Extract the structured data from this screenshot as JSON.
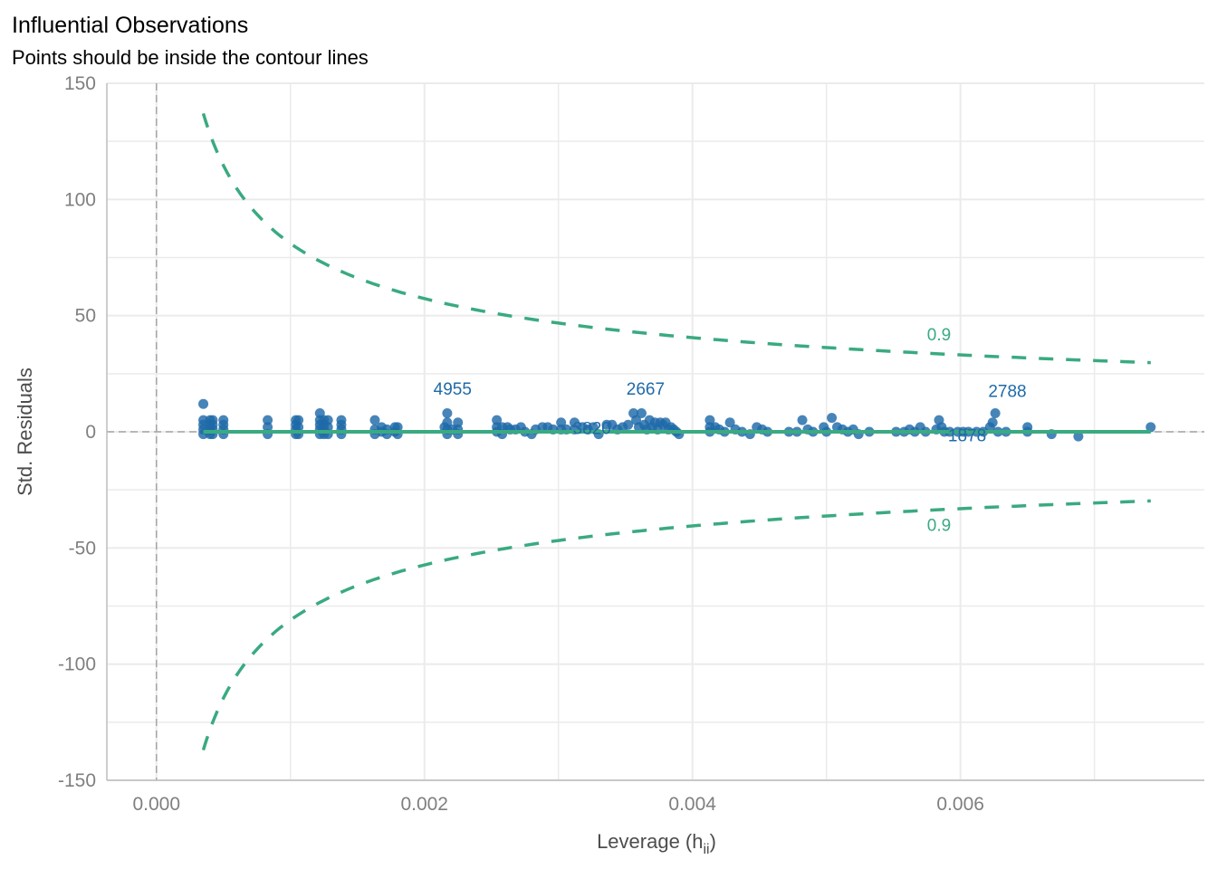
{
  "chart_data": {
    "type": "scatter",
    "title": "Influential Observations",
    "subtitle": "Points should be inside the contour lines",
    "xlabel": "Leverage (h",
    "xlabel_sub": "ii",
    "xlabel_close": ")",
    "ylabel": "Std. Residuals",
    "xlim": [
      -0.00037,
      0.00782
    ],
    "ylim": [
      -150,
      150
    ],
    "x_ticks": [
      0.0,
      0.002,
      0.004,
      0.006
    ],
    "x_tick_labels": [
      "0.000",
      "0.002",
      "0.004",
      "0.006"
    ],
    "x_minor_ticks": [
      0.001,
      0.003,
      0.005,
      0.007
    ],
    "y_ticks": [
      150,
      100,
      50,
      0,
      -50,
      -100,
      -150
    ],
    "y_tick_labels": [
      "150",
      "100",
      "50",
      "0",
      "-50",
      "-100",
      "-150"
    ],
    "y_minor_ticks": [
      125,
      75,
      25,
      -25,
      -75,
      -125
    ],
    "grid": true,
    "reference_lines": {
      "x": 0,
      "y": 0,
      "style": "dashed"
    },
    "contour": {
      "label": "0.9",
      "formula": "y = ±2.563 / sqrt(h)",
      "x_range": [
        0.00035,
        0.00742
      ],
      "label_x": 0.00584,
      "upper_label_y": 42,
      "lower_label_y": -40
    },
    "fit_line": {
      "x": [
        0.00035,
        0.00742
      ],
      "y": [
        0,
        0
      ]
    },
    "points": [
      [
        0.00035,
        12
      ],
      [
        0.00035,
        5
      ],
      [
        0.00035,
        3
      ],
      [
        0.00035,
        1
      ],
      [
        0.00035,
        -1
      ],
      [
        0.0004,
        5
      ],
      [
        0.0004,
        3
      ],
      [
        0.0004,
        1
      ],
      [
        0.0004,
        -1
      ],
      [
        0.00042,
        5
      ],
      [
        0.00042,
        3
      ],
      [
        0.00042,
        1
      ],
      [
        0.00042,
        -1
      ],
      [
        0.0005,
        5
      ],
      [
        0.0005,
        3
      ],
      [
        0.0005,
        1
      ],
      [
        0.0005,
        -1
      ],
      [
        0.00083,
        5
      ],
      [
        0.00083,
        2
      ],
      [
        0.00083,
        -1
      ],
      [
        0.00104,
        5
      ],
      [
        0.00104,
        3
      ],
      [
        0.00104,
        1
      ],
      [
        0.00104,
        -1
      ],
      [
        0.00106,
        5
      ],
      [
        0.00106,
        2
      ],
      [
        0.00106,
        -1
      ],
      [
        0.00122,
        8
      ],
      [
        0.00122,
        5
      ],
      [
        0.00122,
        3
      ],
      [
        0.00122,
        1
      ],
      [
        0.00122,
        -1
      ],
      [
        0.00125,
        5
      ],
      [
        0.00125,
        3
      ],
      [
        0.00125,
        1
      ],
      [
        0.00125,
        -1
      ],
      [
        0.00128,
        5
      ],
      [
        0.00128,
        2
      ],
      [
        0.00128,
        -1
      ],
      [
        0.00138,
        5
      ],
      [
        0.00138,
        3
      ],
      [
        0.00138,
        1
      ],
      [
        0.00138,
        -1
      ],
      [
        0.00163,
        5
      ],
      [
        0.00163,
        1
      ],
      [
        0.00163,
        -1
      ],
      [
        0.00168,
        2
      ],
      [
        0.00168,
        0
      ],
      [
        0.00172,
        1
      ],
      [
        0.00172,
        -1
      ],
      [
        0.00178,
        2
      ],
      [
        0.00178,
        0
      ],
      [
        0.0018,
        2
      ],
      [
        0.0018,
        -1
      ],
      [
        0.00217,
        8
      ],
      [
        0.00217,
        4
      ],
      [
        0.00217,
        1
      ],
      [
        0.00217,
        -1
      ],
      [
        0.00215,
        2
      ],
      [
        0.00221,
        1
      ],
      [
        0.00225,
        4
      ],
      [
        0.00225,
        1
      ],
      [
        0.00225,
        -1
      ],
      [
        0.00254,
        5
      ],
      [
        0.00254,
        2
      ],
      [
        0.00254,
        0
      ],
      [
        0.00258,
        2
      ],
      [
        0.00258,
        -1
      ],
      [
        0.00262,
        2
      ],
      [
        0.00264,
        1
      ],
      [
        0.00268,
        1
      ],
      [
        0.00272,
        2
      ],
      [
        0.00275,
        0
      ],
      [
        0.0028,
        -1
      ],
      [
        0.00283,
        1
      ],
      [
        0.00288,
        2
      ],
      [
        0.00292,
        2
      ],
      [
        0.00296,
        1
      ],
      [
        0.00302,
        4
      ],
      [
        0.00302,
        1
      ],
      [
        0.00306,
        1
      ],
      [
        0.00312,
        4
      ],
      [
        0.00312,
        1
      ],
      [
        0.00318,
        2
      ],
      [
        0.00322,
        1
      ],
      [
        0.00326,
        2
      ],
      [
        0.0033,
        -1
      ],
      [
        0.00336,
        3
      ],
      [
        0.0034,
        3
      ],
      [
        0.00344,
        1
      ],
      [
        0.00348,
        2
      ],
      [
        0.00352,
        3
      ],
      [
        0.00356,
        8
      ],
      [
        0.00358,
        5
      ],
      [
        0.0036,
        2
      ],
      [
        0.00362,
        8
      ],
      [
        0.00364,
        3
      ],
      [
        0.00366,
        1
      ],
      [
        0.00368,
        5
      ],
      [
        0.0037,
        2
      ],
      [
        0.00372,
        4
      ],
      [
        0.00374,
        1
      ],
      [
        0.00376,
        4
      ],
      [
        0.00378,
        3
      ],
      [
        0.0038,
        4
      ],
      [
        0.00382,
        1
      ],
      [
        0.00384,
        2
      ],
      [
        0.00386,
        1
      ],
      [
        0.00388,
        0
      ],
      [
        0.0039,
        -1
      ],
      [
        0.00413,
        5
      ],
      [
        0.00413,
        2
      ],
      [
        0.00413,
        0
      ],
      [
        0.00417,
        2
      ],
      [
        0.0042,
        1
      ],
      [
        0.00424,
        0
      ],
      [
        0.00428,
        4
      ],
      [
        0.00432,
        1
      ],
      [
        0.00437,
        0
      ],
      [
        0.00443,
        -1
      ],
      [
        0.00448,
        2
      ],
      [
        0.00452,
        1
      ],
      [
        0.00456,
        0
      ],
      [
        0.00472,
        0
      ],
      [
        0.00478,
        0
      ],
      [
        0.00482,
        5
      ],
      [
        0.00486,
        1
      ],
      [
        0.0049,
        0
      ],
      [
        0.00498,
        2
      ],
      [
        0.005,
        0
      ],
      [
        0.00504,
        6
      ],
      [
        0.00508,
        2
      ],
      [
        0.00512,
        1
      ],
      [
        0.00516,
        0
      ],
      [
        0.0052,
        1
      ],
      [
        0.00524,
        -1
      ],
      [
        0.00532,
        0
      ],
      [
        0.00552,
        0
      ],
      [
        0.00558,
        0
      ],
      [
        0.00562,
        1
      ],
      [
        0.00566,
        0
      ],
      [
        0.0057,
        2
      ],
      [
        0.00574,
        0
      ],
      [
        0.00582,
        1
      ],
      [
        0.00584,
        5
      ],
      [
        0.00586,
        2
      ],
      [
        0.00588,
        0
      ],
      [
        0.00592,
        0
      ],
      [
        0.00598,
        0
      ],
      [
        0.00602,
        0
      ],
      [
        0.00606,
        0
      ],
      [
        0.00612,
        0
      ],
      [
        0.00617,
        0
      ],
      [
        0.00622,
        2
      ],
      [
        0.00624,
        4
      ],
      [
        0.00626,
        8
      ],
      [
        0.00628,
        0
      ],
      [
        0.00634,
        0
      ],
      [
        0.0065,
        2
      ],
      [
        0.0065,
        0
      ],
      [
        0.00668,
        -1
      ],
      [
        0.00688,
        -2
      ],
      [
        0.00742,
        2
      ]
    ],
    "annotations": [
      {
        "text": "4955",
        "x": 0.00221,
        "y": 16
      },
      {
        "text": "2667",
        "x": 0.00365,
        "y": 16
      },
      {
        "text": "3820",
        "x": 0.00325,
        "y": -1
      },
      {
        "text": "2788",
        "x": 0.00635,
        "y": 15
      },
      {
        "text": "1878",
        "x": 0.00605,
        "y": -4
      }
    ],
    "colors": {
      "points": "#1f6aa8",
      "contour": "#3aaa80",
      "fit_line": "#3aaa80",
      "reference": "#a6a6a6",
      "grid": "#ebebeb"
    }
  }
}
